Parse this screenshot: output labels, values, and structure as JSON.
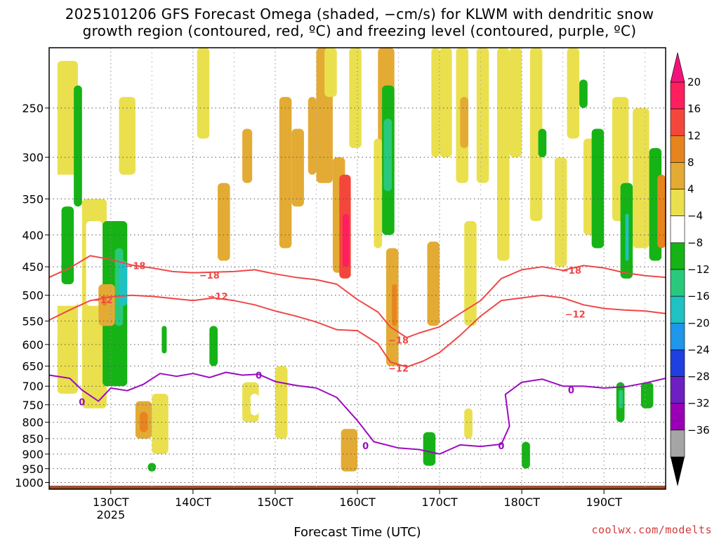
{
  "title": {
    "line1": "2025101206 GFS Forecast Omega (shaded, −cm/s) for KLWM with dendritic snow",
    "line2": "growth region (contoured, red, ºC) and freezing level (contoured, purple, ºC)"
  },
  "credit": "coolwx.com/modelts",
  "chart_data": {
    "type": "heatmap",
    "xlabel": "Forecast Time (UTC)",
    "x_ticks": [
      {
        "label": "130CT",
        "sub": "2025",
        "day": 13
      },
      {
        "label": "140CT",
        "sub": "",
        "day": 14
      },
      {
        "label": "150CT",
        "sub": "",
        "day": 15
      },
      {
        "label": "160CT",
        "sub": "",
        "day": 16
      },
      {
        "label": "170CT",
        "sub": "",
        "day": 17
      },
      {
        "label": "180CT",
        "sub": "",
        "day": 18
      },
      {
        "label": "190CT",
        "sub": "",
        "day": 19
      }
    ],
    "xlim_days": [
      12.25,
      19.75
    ],
    "y_ticks": [
      "250",
      "300",
      "350",
      "400",
      "450",
      "500",
      "550",
      "600",
      "650",
      "700",
      "750",
      "800",
      "850",
      "900",
      "950",
      "1000"
    ],
    "y_values_hpa": [
      250,
      300,
      350,
      400,
      450,
      500,
      550,
      600,
      650,
      700,
      750,
      800,
      850,
      900,
      950,
      1000
    ],
    "ylim_hpa": [
      200,
      1025
    ],
    "y_scale": "log-pressure",
    "grid": true,
    "colorbar": {
      "levels": [
        "20",
        "16",
        "12",
        "8",
        "4",
        "−4",
        "−8",
        "−12",
        "−16",
        "−20",
        "−24",
        "−28",
        "−32",
        "−36"
      ],
      "colors": [
        "#ff1f5f",
        "#f4473c",
        "#e8841e",
        "#e3ab34",
        "#eae04e",
        "#ffffff",
        "#16b316",
        "#29c97b",
        "#1ec2c2",
        "#1e96ea",
        "#1f3fe0",
        "#6e1fc2",
        "#9900b5",
        "#a5a5a5"
      ],
      "top_arrow_color": "#f0147a",
      "bottom_arrow_color": "#000000"
    },
    "contours": [
      {
        "label": "−18",
        "color": "#f04848",
        "label_positions": [
          [
            13.3,
            448
          ],
          [
            14.2,
            464
          ],
          [
            16.5,
            590
          ],
          [
            18.6,
            456
          ]
        ],
        "points": [
          [
            12.25,
            468
          ],
          [
            12.5,
            452
          ],
          [
            12.75,
            432
          ],
          [
            13.0,
            438
          ],
          [
            13.25,
            447
          ],
          [
            13.5,
            452
          ],
          [
            13.75,
            458
          ],
          [
            14.0,
            460
          ],
          [
            14.5,
            458
          ],
          [
            14.75,
            455
          ],
          [
            15.0,
            462
          ],
          [
            15.25,
            468
          ],
          [
            15.5,
            472
          ],
          [
            15.75,
            480
          ],
          [
            16.0,
            508
          ],
          [
            16.25,
            532
          ],
          [
            16.4,
            562
          ],
          [
            16.6,
            585
          ],
          [
            16.75,
            575
          ],
          [
            17.0,
            562
          ],
          [
            17.25,
            535
          ],
          [
            17.5,
            510
          ],
          [
            17.75,
            470
          ],
          [
            18.0,
            455
          ],
          [
            18.25,
            450
          ],
          [
            18.5,
            456
          ],
          [
            18.75,
            448
          ],
          [
            19.0,
            452
          ],
          [
            19.25,
            460
          ],
          [
            19.5,
            465
          ],
          [
            19.75,
            468
          ]
        ]
      },
      {
        "label": "−12",
        "color": "#f04848",
        "label_positions": [
          [
            12.9,
            508
          ],
          [
            14.3,
            502
          ],
          [
            16.5,
            655
          ],
          [
            18.65,
            536
          ]
        ],
        "points": [
          [
            12.25,
            548
          ],
          [
            12.5,
            528
          ],
          [
            12.75,
            510
          ],
          [
            13.0,
            503
          ],
          [
            13.25,
            500
          ],
          [
            13.5,
            502
          ],
          [
            13.75,
            506
          ],
          [
            14.0,
            510
          ],
          [
            14.25,
            505
          ],
          [
            14.5,
            510
          ],
          [
            14.75,
            518
          ],
          [
            15.0,
            530
          ],
          [
            15.25,
            540
          ],
          [
            15.5,
            552
          ],
          [
            15.75,
            568
          ],
          [
            16.0,
            570
          ],
          [
            16.25,
            598
          ],
          [
            16.4,
            640
          ],
          [
            16.6,
            652
          ],
          [
            16.8,
            638
          ],
          [
            17.0,
            618
          ],
          [
            17.25,
            580
          ],
          [
            17.5,
            540
          ],
          [
            17.75,
            510
          ],
          [
            18.0,
            505
          ],
          [
            18.25,
            500
          ],
          [
            18.5,
            505
          ],
          [
            18.75,
            518
          ],
          [
            19.0,
            525
          ],
          [
            19.25,
            528
          ],
          [
            19.5,
            530
          ],
          [
            19.75,
            535
          ]
        ]
      },
      {
        "label": "0",
        "color": "#9a0cc0",
        "label_positions": [
          [
            12.65,
            742
          ],
          [
            14.8,
            672
          ],
          [
            16.1,
            872
          ],
          [
            17.75,
            872
          ],
          [
            18.6,
            710
          ]
        ],
        "points": [
          [
            12.25,
            672
          ],
          [
            12.5,
            680
          ],
          [
            12.65,
            710
          ],
          [
            12.85,
            740
          ],
          [
            13.0,
            705
          ],
          [
            13.2,
            712
          ],
          [
            13.4,
            695
          ],
          [
            13.6,
            668
          ],
          [
            13.8,
            675
          ],
          [
            14.0,
            668
          ],
          [
            14.2,
            678
          ],
          [
            14.4,
            665
          ],
          [
            14.6,
            672
          ],
          [
            14.8,
            670
          ],
          [
            15.0,
            688
          ],
          [
            15.25,
            698
          ],
          [
            15.5,
            705
          ],
          [
            15.75,
            730
          ],
          [
            16.0,
            795
          ],
          [
            16.2,
            860
          ],
          [
            16.5,
            880
          ],
          [
            16.75,
            885
          ],
          [
            17.0,
            900
          ],
          [
            17.25,
            870
          ],
          [
            17.5,
            875
          ],
          [
            17.75,
            868
          ],
          [
            17.85,
            812
          ],
          [
            17.8,
            722
          ],
          [
            18.0,
            690
          ],
          [
            18.25,
            682
          ],
          [
            18.5,
            700
          ],
          [
            18.75,
            700
          ],
          [
            19.0,
            705
          ],
          [
            19.25,
            702
          ],
          [
            19.5,
            692
          ],
          [
            19.75,
            680
          ]
        ]
      }
    ],
    "omega_cells": [
      {
        "c": 4,
        "d": [
          12.35,
          12.6
        ],
        "p": [
          210,
          720
        ]
      },
      {
        "c": 5,
        "d": [
          12.3,
          12.6
        ],
        "p": [
          320,
          520
        ]
      },
      {
        "c": 6,
        "d": [
          12.4,
          12.55
        ],
        "p": [
          360,
          480
        ]
      },
      {
        "c": 6,
        "d": [
          12.55,
          12.65
        ],
        "p": [
          230,
          360
        ]
      },
      {
        "c": 4,
        "d": [
          12.65,
          12.95
        ],
        "p": [
          350,
          760
        ]
      },
      {
        "c": 5,
        "d": [
          12.7,
          12.9
        ],
        "p": [
          380,
          520
        ]
      },
      {
        "c": 6,
        "d": [
          12.9,
          13.2
        ],
        "p": [
          380,
          700
        ]
      },
      {
        "c": 7,
        "d": [
          13.05,
          13.15
        ],
        "p": [
          420,
          560
        ]
      },
      {
        "c": 8,
        "d": [
          13.1,
          13.2
        ],
        "p": [
          440,
          520
        ]
      },
      {
        "c": 3,
        "d": [
          12.85,
          13.05
        ],
        "p": [
          480,
          560
        ]
      },
      {
        "c": 2,
        "d": [
          12.9,
          12.95
        ],
        "p": [
          500,
          520
        ]
      },
      {
        "c": 3,
        "d": [
          13.3,
          13.5
        ],
        "p": [
          740,
          850
        ]
      },
      {
        "c": 2,
        "d": [
          13.35,
          13.45
        ],
        "p": [
          770,
          830
        ]
      },
      {
        "c": 4,
        "d": [
          13.5,
          13.7
        ],
        "p": [
          720,
          900
        ]
      },
      {
        "c": 5,
        "d": [
          13.6,
          13.7
        ],
        "p": [
          520,
          640
        ]
      },
      {
        "c": 6,
        "d": [
          13.62,
          13.68
        ],
        "p": [
          560,
          620
        ]
      },
      {
        "c": 4,
        "d": [
          14.6,
          14.8
        ],
        "p": [
          690,
          800
        ]
      },
      {
        "c": 5,
        "d": [
          14.7,
          14.8
        ],
        "p": [
          720,
          780
        ]
      },
      {
        "c": 4,
        "d": [
          14.05,
          14.2
        ],
        "p": [
          200,
          280
        ]
      },
      {
        "c": 3,
        "d": [
          14.3,
          14.45
        ],
        "p": [
          330,
          440
        ]
      },
      {
        "c": 3,
        "d": [
          14.6,
          14.72
        ],
        "p": [
          270,
          330
        ]
      },
      {
        "c": 3,
        "d": [
          15.05,
          15.2
        ],
        "p": [
          240,
          420
        ]
      },
      {
        "c": 4,
        "d": [
          15.0,
          15.15
        ],
        "p": [
          650,
          850
        ]
      },
      {
        "c": 3,
        "d": [
          15.2,
          15.35
        ],
        "p": [
          270,
          360
        ]
      },
      {
        "c": 3,
        "d": [
          15.4,
          15.5
        ],
        "p": [
          240,
          320
        ]
      },
      {
        "c": 3,
        "d": [
          15.5,
          15.7
        ],
        "p": [
          200,
          330
        ]
      },
      {
        "c": 4,
        "d": [
          15.6,
          15.75
        ],
        "p": [
          200,
          240
        ]
      },
      {
        "c": 3,
        "d": [
          15.7,
          15.85
        ],
        "p": [
          300,
          460
        ]
      },
      {
        "c": 1,
        "d": [
          15.78,
          15.92
        ],
        "p": [
          320,
          470
        ]
      },
      {
        "c": 0,
        "d": [
          15.82,
          15.9
        ],
        "p": [
          370,
          450
        ]
      },
      {
        "c": 3,
        "d": [
          15.8,
          16.0
        ],
        "p": [
          820,
          960
        ]
      },
      {
        "c": 4,
        "d": [
          15.9,
          16.05
        ],
        "p": [
          200,
          290
        ]
      },
      {
        "c": 3,
        "d": [
          16.25,
          16.45
        ],
        "p": [
          200,
          320
        ]
      },
      {
        "c": 4,
        "d": [
          16.2,
          16.3
        ],
        "p": [
          280,
          420
        ]
      },
      {
        "c": 6,
        "d": [
          16.3,
          16.45
        ],
        "p": [
          230,
          400
        ]
      },
      {
        "c": 7,
        "d": [
          16.32,
          16.42
        ],
        "p": [
          260,
          340
        ]
      },
      {
        "c": 3,
        "d": [
          16.35,
          16.5
        ],
        "p": [
          420,
          650
        ]
      },
      {
        "c": 2,
        "d": [
          16.42,
          16.48
        ],
        "p": [
          480,
          560
        ]
      },
      {
        "c": 3,
        "d": [
          16.85,
          17.0
        ],
        "p": [
          410,
          560
        ]
      },
      {
        "c": 4,
        "d": [
          16.9,
          17.0
        ],
        "p": [
          200,
          300
        ]
      },
      {
        "c": 6,
        "d": [
          16.8,
          16.95
        ],
        "p": [
          830,
          940
        ]
      },
      {
        "c": 4,
        "d": [
          17.0,
          17.15
        ],
        "p": [
          200,
          300
        ]
      },
      {
        "c": 4,
        "d": [
          17.2,
          17.35
        ],
        "p": [
          200,
          330
        ]
      },
      {
        "c": 3,
        "d": [
          17.25,
          17.35
        ],
        "p": [
          240,
          290
        ]
      },
      {
        "c": 4,
        "d": [
          17.3,
          17.45
        ],
        "p": [
          380,
          560
        ]
      },
      {
        "c": 4,
        "d": [
          17.45,
          17.6
        ],
        "p": [
          200,
          330
        ]
      },
      {
        "c": 4,
        "d": [
          17.7,
          17.85
        ],
        "p": [
          200,
          440
        ]
      },
      {
        "c": 4,
        "d": [
          17.85,
          18.0
        ],
        "p": [
          200,
          300
        ]
      },
      {
        "c": 4,
        "d": [
          18.1,
          18.25
        ],
        "p": [
          200,
          380
        ]
      },
      {
        "c": 6,
        "d": [
          18.2,
          18.3
        ],
        "p": [
          270,
          300
        ]
      },
      {
        "c": 4,
        "d": [
          18.4,
          18.55
        ],
        "p": [
          300,
          450
        ]
      },
      {
        "c": 4,
        "d": [
          18.55,
          18.7
        ],
        "p": [
          200,
          280
        ]
      },
      {
        "c": 6,
        "d": [
          18.7,
          18.8
        ],
        "p": [
          225,
          250
        ]
      },
      {
        "c": 4,
        "d": [
          18.75,
          18.9
        ],
        "p": [
          280,
          400
        ]
      },
      {
        "c": 6,
        "d": [
          18.85,
          19.0
        ],
        "p": [
          270,
          420
        ]
      },
      {
        "c": 4,
        "d": [
          19.1,
          19.3
        ],
        "p": [
          240,
          380
        ]
      },
      {
        "c": 4,
        "d": [
          19.35,
          19.55
        ],
        "p": [
          250,
          420
        ]
      },
      {
        "c": 6,
        "d": [
          19.2,
          19.35
        ],
        "p": [
          330,
          470
        ]
      },
      {
        "c": 8,
        "d": [
          19.26,
          19.3
        ],
        "p": [
          370,
          440
        ]
      },
      {
        "c": 6,
        "d": [
          19.15,
          19.25
        ],
        "p": [
          690,
          800
        ]
      },
      {
        "c": 7,
        "d": [
          19.18,
          19.23
        ],
        "p": [
          710,
          760
        ]
      },
      {
        "c": 6,
        "d": [
          19.45,
          19.6
        ],
        "p": [
          690,
          760
        ]
      },
      {
        "c": 6,
        "d": [
          19.55,
          19.7
        ],
        "p": [
          290,
          440
        ]
      },
      {
        "c": 2,
        "d": [
          19.65,
          19.75
        ],
        "p": [
          320,
          420
        ]
      },
      {
        "c": 6,
        "d": [
          18.0,
          18.1
        ],
        "p": [
          860,
          950
        ]
      },
      {
        "c": 4,
        "d": [
          17.3,
          17.4
        ],
        "p": [
          760,
          850
        ]
      },
      {
        "c": 6,
        "d": [
          14.2,
          14.3
        ],
        "p": [
          560,
          650
        ]
      },
      {
        "c": 4,
        "d": [
          13.1,
          13.3
        ],
        "p": [
          240,
          320
        ]
      },
      {
        "c": 6,
        "d": [
          13.45,
          13.55
        ],
        "p": [
          930,
          960
        ]
      }
    ]
  }
}
